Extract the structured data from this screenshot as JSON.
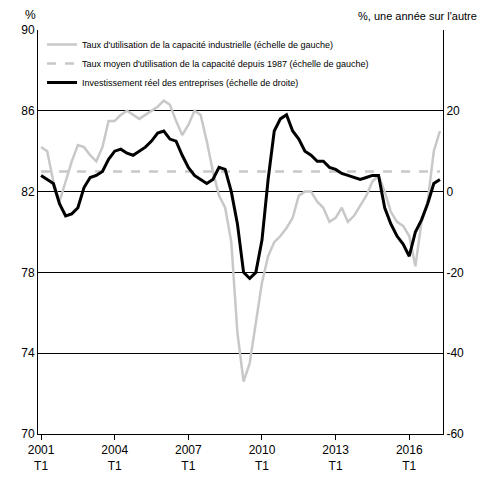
{
  "chart_data": {
    "type": "line",
    "ylabel": "%",
    "y2label": "%, une année sur l'autre",
    "categories": [
      "2001 T1",
      null,
      null,
      null,
      null,
      null,
      null,
      null,
      null,
      null,
      null,
      null,
      "2004 T1",
      null,
      null,
      null,
      null,
      null,
      null,
      null,
      null,
      null,
      null,
      null,
      "2007 T1",
      null,
      null,
      null,
      null,
      null,
      null,
      null,
      null,
      null,
      null,
      null,
      "2010 T1",
      null,
      null,
      null,
      null,
      null,
      null,
      null,
      null,
      null,
      null,
      null,
      "2013 T1",
      null,
      null,
      null,
      null,
      null,
      null,
      null,
      null,
      null,
      null,
      null,
      "2016 T1",
      null,
      null,
      null,
      null,
      null
    ],
    "series": [
      {
        "name": "Taux d'utilisation de la capacité industrielle (échelle de gauche)",
        "color": "#c8c8c8",
        "line_style": "solid",
        "axis": "y",
        "values": [
          84.2,
          84,
          82.5,
          81.5,
          82.5,
          83.5,
          84.3,
          84.2,
          83.8,
          83.5,
          84.2,
          85.5,
          85.5,
          85.8,
          86,
          85.8,
          85.6,
          85.8,
          86,
          86.2,
          86.5,
          86.3,
          85.5,
          84.8,
          85.3,
          86,
          85.8,
          84.5,
          83,
          81.8,
          81.2,
          79.5,
          75,
          72.6,
          73.5,
          75.5,
          77.5,
          78.8,
          79.5,
          79.8,
          80.2,
          80.7,
          81.8,
          82,
          82,
          81.5,
          81.2,
          80.5,
          80.7,
          81.2,
          80.5,
          80.8,
          81.3,
          81.8,
          82.5,
          82.8,
          82,
          81,
          80.5,
          80.3,
          79.8,
          78.3,
          80.5,
          81.5,
          84,
          85
        ]
      },
      {
        "name": "Taux moyen d'utilisation de la capacité depuis 1987 (échelle de gauche)",
        "color": "#c8c8c8",
        "line_style": "dashed",
        "axis": "y",
        "values": [
          83,
          83,
          83,
          83,
          83,
          83,
          83,
          83,
          83,
          83,
          83,
          83,
          83,
          83,
          83,
          83,
          83,
          83,
          83,
          83,
          83,
          83,
          83,
          83,
          83,
          83,
          83,
          83,
          83,
          83,
          83,
          83,
          83,
          83,
          83,
          83,
          83,
          83,
          83,
          83,
          83,
          83,
          83,
          83,
          83,
          83,
          83,
          83,
          83,
          83,
          83,
          83,
          83,
          83,
          83,
          83,
          83,
          83,
          83,
          83,
          83,
          83,
          83,
          83,
          83,
          83
        ]
      },
      {
        "name": "Investissement réel des entreprises (échelle de droite)",
        "color": "#000000",
        "line_style": "solid",
        "axis": "y2",
        "values": [
          4,
          3,
          2,
          -3,
          -6,
          -5.5,
          -4,
          1,
          3.5,
          4,
          5,
          8,
          10,
          10.5,
          9.5,
          9,
          10,
          11,
          12.5,
          14.5,
          15,
          13,
          12.5,
          9,
          6,
          4,
          3,
          2,
          3,
          6,
          5.5,
          0,
          -8,
          -20,
          -21.5,
          -20,
          -12,
          3,
          15,
          18,
          19,
          15,
          13,
          10,
          9,
          7.5,
          7.5,
          6,
          5.5,
          4.5,
          4,
          3.5,
          3,
          3.5,
          4,
          4,
          -4,
          -8,
          -11,
          -13,
          -16,
          -10,
          -7,
          -3,
          2,
          3
        ]
      }
    ],
    "ylim": [
      70,
      90
    ],
    "yticks": [
      70,
      74,
      78,
      82,
      86,
      90
    ],
    "y2lim": [
      -60,
      40
    ],
    "y2ticks": [
      -60,
      -40,
      -20,
      0,
      20
    ],
    "grid": true,
    "legend": "upper left"
  }
}
